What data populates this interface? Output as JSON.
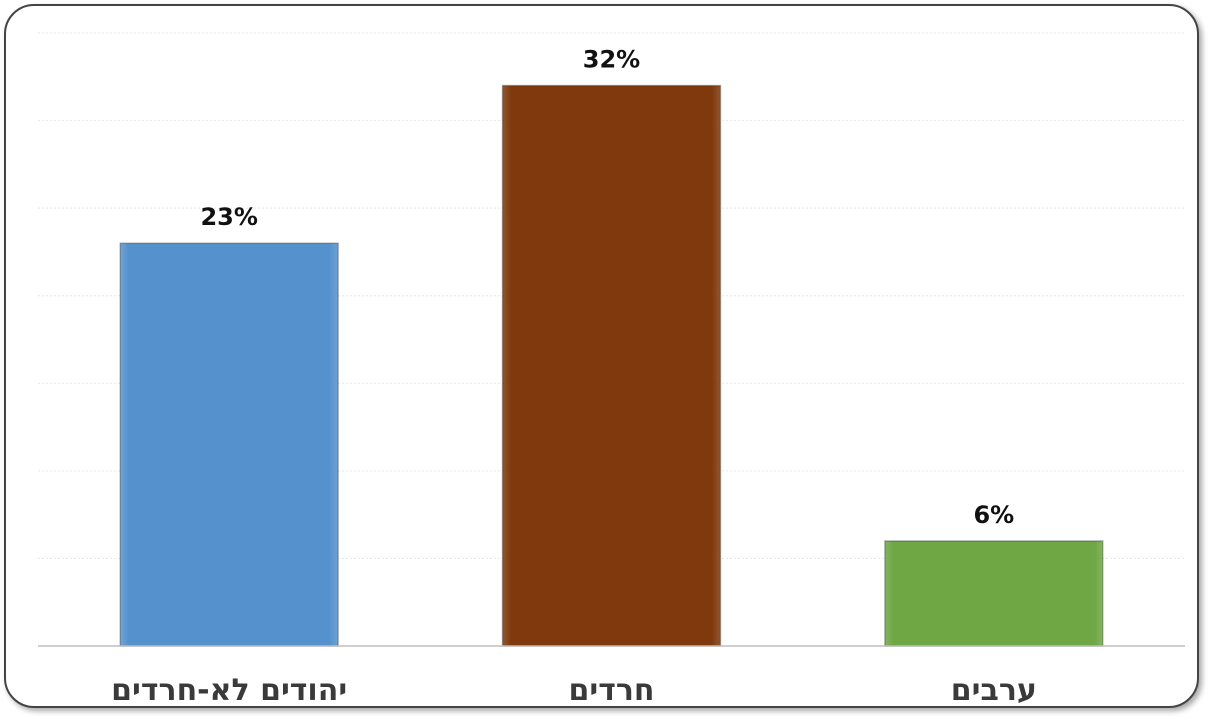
{
  "chart_data": {
    "type": "bar",
    "title": "",
    "xlabel": "",
    "ylabel": "",
    "categories": [
      "יהודים לא-חרדים",
      "חרדים",
      "ערבים"
    ],
    "values": [
      23,
      32,
      6
    ],
    "value_labels": [
      "23%",
      "32%",
      "6%"
    ],
    "unit": "%",
    "ylim": [
      0,
      35
    ],
    "grid": true,
    "legend": "none",
    "colors": [
      "#5592CD",
      "#7F390C",
      "#6EA744"
    ]
  }
}
